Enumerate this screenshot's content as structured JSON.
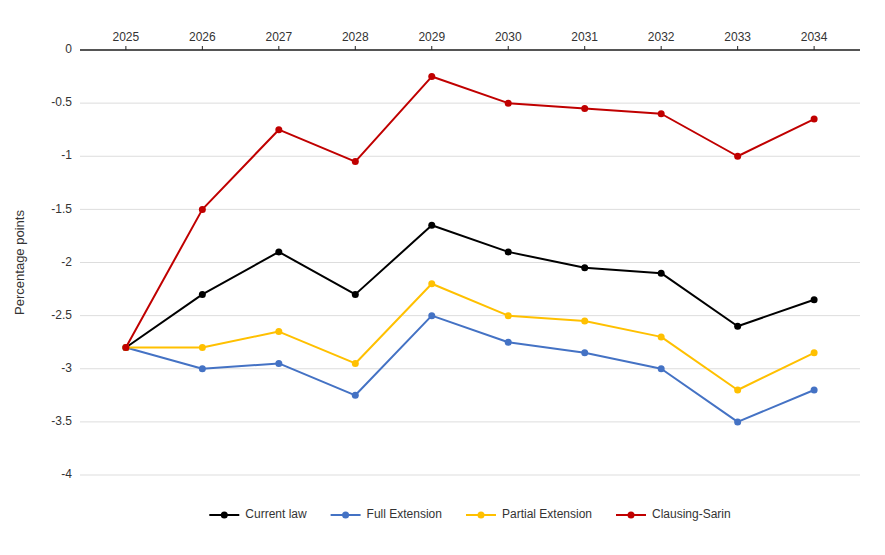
{
  "chart_data": {
    "type": "line",
    "y_label": "Percentage points",
    "x": [
      2025,
      2026,
      2027,
      2028,
      2029,
      2030,
      2031,
      2032,
      2033,
      2034
    ],
    "xlim": [
      2024.4,
      2034.6
    ],
    "xticks": [
      2025,
      2026,
      2027,
      2028,
      2029,
      2030,
      2031,
      2032,
      2033,
      2034
    ],
    "ylim": [
      -4.0,
      0.0
    ],
    "yticks": [
      0,
      -0.5,
      -1,
      -1.5,
      -2,
      -2.5,
      -3,
      -3.5,
      -4
    ],
    "grid": "y",
    "legend": "bottom",
    "marker": "circle",
    "series": [
      {
        "name": "Current law",
        "color": "#000000",
        "values": [
          -2.8,
          -2.3,
          -1.9,
          -2.3,
          -1.65,
          -1.9,
          -2.05,
          -2.1,
          -2.6,
          -2.35
        ]
      },
      {
        "name": "Full Extension",
        "color": "#4472C4",
        "values": [
          -2.8,
          -3.0,
          -2.95,
          -3.25,
          -2.5,
          -2.75,
          -2.85,
          -3.0,
          -3.5,
          -3.2
        ]
      },
      {
        "name": "Partial Extension",
        "color": "#FFC000",
        "values": [
          -2.8,
          -2.8,
          -2.65,
          -2.95,
          -2.2,
          -2.5,
          -2.55,
          -2.7,
          -3.2,
          -2.85
        ]
      },
      {
        "name": "Clausing-Sarin",
        "color": "#C00000",
        "values": [
          -2.8,
          -1.5,
          -0.75,
          -1.05,
          -0.25,
          -0.5,
          -0.55,
          -0.6,
          -1.0,
          -0.65
        ]
      }
    ]
  }
}
